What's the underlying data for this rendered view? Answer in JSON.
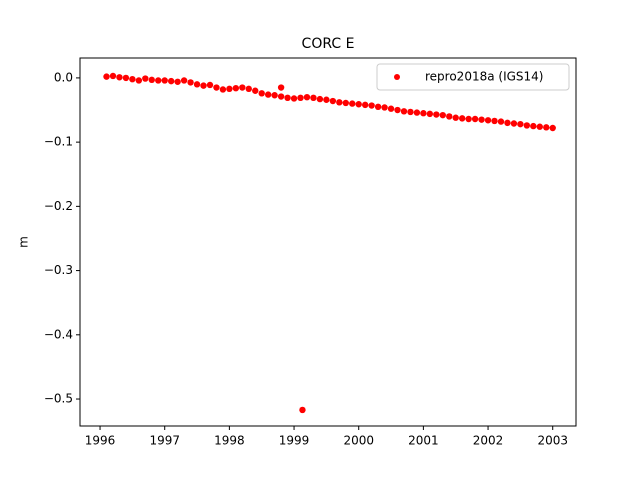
{
  "chart_data": {
    "type": "scatter",
    "title": "CORC E",
    "y_label": "m",
    "legend": "upper right",
    "xlim": [
      1995.69,
      2003.36
    ],
    "xticks": [
      1996,
      1997,
      1998,
      1999,
      2000,
      2001,
      2002,
      2003
    ],
    "ylim": [
      -0.542,
      0.031
    ],
    "yticks": [
      {
        "value": 0,
        "label": "0.0"
      },
      {
        "value": -0.1,
        "label": "−0.1"
      },
      {
        "value": -0.2,
        "label": "−0.2"
      },
      {
        "value": -0.3,
        "label": "−0.3"
      },
      {
        "value": -0.4,
        "label": "−0.4"
      },
      {
        "value": -0.5,
        "label": "−0.5"
      }
    ],
    "series": [
      {
        "name": "repro2018a (IGS14)",
        "color": "#ff0000",
        "x": [
          1996.1,
          1996.2,
          1996.3,
          1996.4,
          1996.5,
          1996.6,
          1996.7,
          1996.8,
          1996.9,
          1997.0,
          1997.1,
          1997.2,
          1997.3,
          1997.4,
          1997.5,
          1997.6,
          1997.7,
          1997.8,
          1997.9,
          1998.0,
          1998.1,
          1998.2,
          1998.3,
          1998.4,
          1998.5,
          1998.6,
          1998.7,
          1998.8,
          1998.8,
          1998.9,
          1999.0,
          1999.1,
          1999.13,
          1999.2,
          1999.3,
          1999.4,
          1999.5,
          1999.6,
          1999.7,
          1999.8,
          1999.9,
          2000.0,
          2000.1,
          2000.2,
          2000.3,
          2000.4,
          2000.5,
          2000.6,
          2000.7,
          2000.8,
          2000.9,
          2001.0,
          2001.1,
          2001.2,
          2001.3,
          2001.4,
          2001.5,
          2001.6,
          2001.7,
          2001.8,
          2001.9,
          2002.0,
          2002.1,
          2002.2,
          2002.3,
          2002.4,
          2002.5,
          2002.6,
          2002.7,
          2002.8,
          2002.9,
          2003.0
        ],
        "values": [
          0.002,
          0.003,
          0.001,
          0.0,
          -0.002,
          -0.004,
          -0.001,
          -0.003,
          -0.004,
          -0.004,
          -0.005,
          -0.006,
          -0.004,
          -0.007,
          -0.01,
          -0.012,
          -0.011,
          -0.015,
          -0.018,
          -0.017,
          -0.016,
          -0.015,
          -0.017,
          -0.02,
          -0.024,
          -0.026,
          -0.027,
          -0.029,
          -0.015,
          -0.031,
          -0.032,
          -0.031,
          -0.517,
          -0.03,
          -0.031,
          -0.033,
          -0.034,
          -0.036,
          -0.038,
          -0.039,
          -0.04,
          -0.041,
          -0.042,
          -0.043,
          -0.045,
          -0.046,
          -0.048,
          -0.05,
          -0.052,
          -0.053,
          -0.054,
          -0.055,
          -0.056,
          -0.057,
          -0.058,
          -0.06,
          -0.062,
          -0.063,
          -0.064,
          -0.064,
          -0.065,
          -0.066,
          -0.067,
          -0.068,
          -0.07,
          -0.071,
          -0.072,
          -0.074,
          -0.075,
          -0.076,
          -0.077,
          -0.078
        ]
      }
    ]
  }
}
